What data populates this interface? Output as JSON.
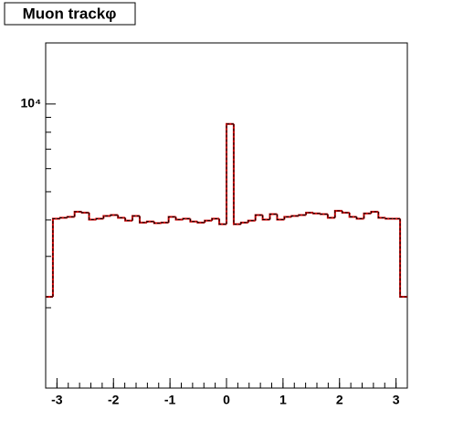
{
  "chart_data": {
    "type": "histogram",
    "title": "Muon trackφ",
    "bins": [
      -3.2,
      -3.072,
      -2.944,
      -2.816,
      -2.688,
      -2.56,
      -2.432,
      -2.304,
      -2.176,
      -2.048,
      -1.92,
      -1.792,
      -1.664,
      -1.536,
      -1.408,
      -1.28,
      -1.152,
      -1.024,
      -0.896,
      -0.768,
      -0.64,
      -0.512,
      -0.384,
      -0.256,
      -0.128,
      0,
      0.128,
      0.256,
      0.384,
      0.512,
      0.64,
      0.768,
      0.896,
      1.024,
      1.152,
      1.28,
      1.408,
      1.536,
      1.664,
      1.792,
      1.92,
      2.048,
      2.176,
      2.304,
      2.432,
      2.56,
      2.688,
      2.816,
      2.944,
      3.072,
      3.2
    ],
    "values": [
      2180,
      4040,
      4070,
      4100,
      4270,
      4240,
      4010,
      4040,
      4130,
      4160,
      4070,
      3980,
      4130,
      3920,
      3950,
      3900,
      3920,
      4100,
      4010,
      4040,
      3950,
      3920,
      3980,
      4040,
      3870,
      8540,
      3870,
      3920,
      3980,
      4160,
      4010,
      4190,
      4010,
      4100,
      4130,
      4160,
      4240,
      4210,
      4190,
      4070,
      4300,
      4240,
      4100,
      4040,
      4210,
      4270,
      4070,
      4040,
      4040,
      2180
    ],
    "color": "#cc0000",
    "overlay_color": "#000000",
    "xlim": [
      -3.2,
      3.2
    ],
    "xticks": [
      -3,
      -2,
      -1,
      0,
      1,
      2,
      3
    ],
    "xminorticks": [
      -3.2,
      -3.0,
      -2.8,
      -2.6,
      -2.4,
      -2.2,
      -2.0,
      -1.8,
      -1.6,
      -1.4,
      -1.2,
      -1.0,
      -0.8,
      -0.6,
      -0.4,
      -0.2,
      0,
      0.2,
      0.4,
      0.6,
      0.8,
      1.0,
      1.2,
      1.4,
      1.6,
      1.8,
      2.0,
      2.2,
      2.4,
      2.6,
      2.8,
      3.0,
      3.2
    ],
    "ylim": [
      1060,
      16200
    ],
    "log_y": true,
    "yticks": [
      {
        "value": 10000,
        "label": "10⁴"
      }
    ],
    "yminorticks": [
      2000,
      3000,
      4000,
      5000,
      6000,
      7000,
      8000,
      9000
    ],
    "grid": false
  }
}
